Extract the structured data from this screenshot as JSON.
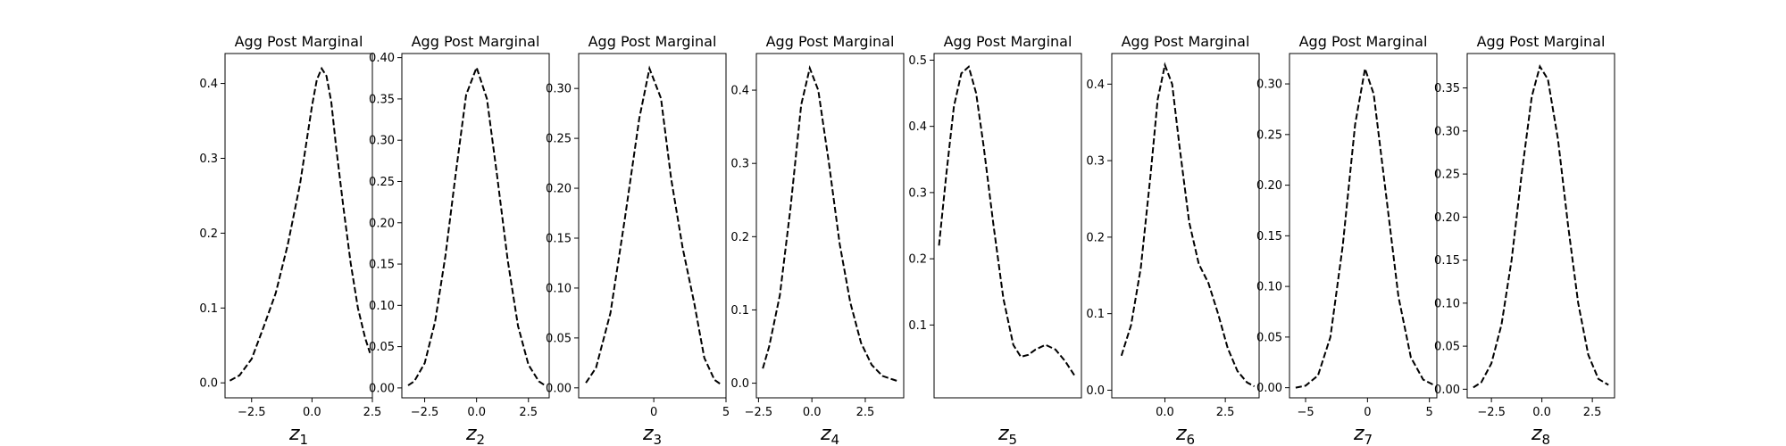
{
  "figure": {
    "background": "#ffffff",
    "line_color": "#000000"
  },
  "chart_data": [
    {
      "type": "line",
      "title": "Agg Post Marginal",
      "xlabel": "z",
      "xlabel_sub": "1",
      "xlim": [
        -3.6,
        2.5
      ],
      "ylim": [
        -0.02,
        0.44
      ],
      "xticks": [
        -2.5,
        0.0,
        2.5
      ],
      "xtick_labels": [
        "−2.5",
        "0.0",
        "2.5"
      ],
      "yticks": [
        0.0,
        0.1,
        0.2,
        0.3,
        0.4
      ],
      "ytick_labels": [
        "0.0",
        "0.1",
        "0.2",
        "0.3",
        "0.4"
      ],
      "series": [
        {
          "style": "dashed",
          "x": [
            -3.4,
            -3.0,
            -2.5,
            -2.0,
            -1.5,
            -1.0,
            -0.5,
            0.0,
            0.2,
            0.4,
            0.6,
            0.8,
            1.0,
            1.3,
            1.6,
            1.9,
            2.2,
            2.4
          ],
          "y": [
            0.003,
            0.01,
            0.032,
            0.075,
            0.12,
            0.185,
            0.265,
            0.37,
            0.405,
            0.42,
            0.41,
            0.375,
            0.315,
            0.235,
            0.16,
            0.1,
            0.06,
            0.04
          ]
        }
      ]
    },
    {
      "type": "line",
      "title": "Agg Post Marginal",
      "xlabel": "z",
      "xlabel_sub": "2",
      "xlim": [
        -3.6,
        3.5
      ],
      "ylim": [
        -0.012,
        0.405
      ],
      "xticks": [
        -2.5,
        0.0,
        2.5
      ],
      "xtick_labels": [
        "−2.5",
        "0.0",
        "2.5"
      ],
      "yticks": [
        0.0,
        0.05,
        0.1,
        0.15,
        0.2,
        0.25,
        0.3,
        0.35,
        0.4
      ],
      "ytick_labels": [
        "0.00",
        "0.05",
        "0.10",
        "0.15",
        "0.20",
        "0.25",
        "0.30",
        "0.35",
        "0.40"
      ],
      "series": [
        {
          "style": "dashed",
          "x": [
            -3.3,
            -3.0,
            -2.5,
            -2.0,
            -1.5,
            -1.0,
            -0.5,
            0.0,
            0.5,
            1.0,
            1.5,
            2.0,
            2.5,
            3.0,
            3.3
          ],
          "y": [
            0.003,
            0.008,
            0.03,
            0.08,
            0.16,
            0.26,
            0.355,
            0.388,
            0.35,
            0.255,
            0.155,
            0.075,
            0.028,
            0.008,
            0.003
          ]
        }
      ]
    },
    {
      "type": "line",
      "title": "Agg Post Marginal",
      "xlabel": "z",
      "xlabel_sub": "3",
      "xlim": [
        -5.2,
        5.0
      ],
      "ylim": [
        -0.01,
        0.335
      ],
      "xticks": [
        0,
        5
      ],
      "xtick_labels": [
        "0",
        "5"
      ],
      "yticks": [
        0.0,
        0.05,
        0.1,
        0.15,
        0.2,
        0.25,
        0.3
      ],
      "ytick_labels": [
        "0.00",
        "0.05",
        "0.10",
        "0.15",
        "0.20",
        "0.25",
        "0.30"
      ],
      "series": [
        {
          "style": "dashed",
          "x": [
            -4.7,
            -4.0,
            -3.0,
            -2.0,
            -1.0,
            -0.3,
            0.5,
            1.2,
            2.0,
            2.8,
            3.5,
            4.2,
            4.7
          ],
          "y": [
            0.005,
            0.02,
            0.075,
            0.17,
            0.27,
            0.32,
            0.29,
            0.21,
            0.14,
            0.085,
            0.03,
            0.008,
            0.003
          ]
        }
      ]
    },
    {
      "type": "line",
      "title": "Agg Post Marginal",
      "xlabel": "z",
      "xlabel_sub": "4",
      "xlim": [
        -2.6,
        4.3
      ],
      "ylim": [
        -0.02,
        0.45
      ],
      "xticks": [
        -2.5,
        0.0,
        2.5
      ],
      "xtick_labels": [
        "−2.5",
        "0.0",
        "2.5"
      ],
      "yticks": [
        0.0,
        0.1,
        0.2,
        0.3,
        0.4
      ],
      "ytick_labels": [
        "0.0",
        "0.1",
        "0.2",
        "0.3",
        "0.4"
      ],
      "series": [
        {
          "style": "dashed",
          "x": [
            -2.3,
            -2.0,
            -1.5,
            -1.0,
            -0.5,
            -0.1,
            0.3,
            0.8,
            1.3,
            1.8,
            2.3,
            2.8,
            3.3,
            3.8,
            4.0
          ],
          "y": [
            0.02,
            0.05,
            0.12,
            0.24,
            0.38,
            0.43,
            0.4,
            0.3,
            0.19,
            0.11,
            0.055,
            0.025,
            0.01,
            0.005,
            0.003
          ]
        }
      ]
    },
    {
      "type": "line",
      "title": "Agg Post Marginal",
      "xlabel": "z",
      "xlabel_sub": "5",
      "xlim": [
        -2.0,
        3.95
      ],
      "ylim": [
        -0.01,
        0.51
      ],
      "xticks": [],
      "xtick_labels": [],
      "yticks": [
        0.1,
        0.2,
        0.3,
        0.4,
        0.5
      ],
      "ytick_labels": [
        "0.1",
        "0.2",
        "0.3",
        "0.4",
        "0.5"
      ],
      "series": [
        {
          "style": "dashed",
          "x": [
            -1.8,
            -1.5,
            -1.2,
            -0.9,
            -0.6,
            -0.3,
            0.0,
            0.4,
            0.8,
            1.2,
            1.5,
            1.8,
            2.1,
            2.5,
            2.9,
            3.3,
            3.7
          ],
          "y": [
            0.22,
            0.33,
            0.43,
            0.48,
            0.49,
            0.45,
            0.37,
            0.25,
            0.14,
            0.07,
            0.052,
            0.055,
            0.063,
            0.07,
            0.063,
            0.045,
            0.022
          ]
        }
      ]
    },
    {
      "type": "line",
      "title": "Agg Post Marginal",
      "xlabel": "z",
      "xlabel_sub": "6",
      "xlim": [
        -2.2,
        3.9
      ],
      "ylim": [
        -0.01,
        0.44
      ],
      "xticks": [
        0.0,
        2.5
      ],
      "xtick_labels": [
        "0.0",
        "2.5"
      ],
      "yticks": [
        0.0,
        0.1,
        0.2,
        0.3,
        0.4
      ],
      "ytick_labels": [
        "0.0",
        "0.1",
        "0.2",
        "0.3",
        "0.4"
      ],
      "series": [
        {
          "style": "dashed",
          "x": [
            -1.8,
            -1.4,
            -1.0,
            -0.6,
            -0.3,
            0.0,
            0.3,
            0.6,
            1.0,
            1.4,
            1.8,
            2.2,
            2.6,
            3.0,
            3.4,
            3.7
          ],
          "y": [
            0.045,
            0.085,
            0.16,
            0.28,
            0.38,
            0.425,
            0.4,
            0.32,
            0.22,
            0.165,
            0.14,
            0.1,
            0.055,
            0.025,
            0.01,
            0.005
          ]
        }
      ]
    },
    {
      "type": "line",
      "title": "Agg Post Marginal",
      "xlabel": "z",
      "xlabel_sub": "7",
      "xlim": [
        -6.3,
        5.6
      ],
      "ylim": [
        -0.01,
        0.33
      ],
      "xticks": [
        -5,
        0,
        5
      ],
      "xtick_labels": [
        "−5",
        "0",
        "5"
      ],
      "yticks": [
        0.0,
        0.05,
        0.1,
        0.15,
        0.2,
        0.25,
        0.3
      ],
      "ytick_labels": [
        "0.00",
        "0.05",
        "0.10",
        "0.15",
        "0.20",
        "0.25",
        "0.30"
      ],
      "series": [
        {
          "style": "dashed",
          "x": [
            -5.8,
            -5.0,
            -4.0,
            -3.0,
            -2.0,
            -1.0,
            -0.2,
            0.5,
            1.5,
            2.5,
            3.5,
            4.5,
            5.3
          ],
          "y": [
            0.0,
            0.002,
            0.012,
            0.05,
            0.14,
            0.26,
            0.315,
            0.29,
            0.19,
            0.09,
            0.03,
            0.008,
            0.003
          ]
        }
      ]
    },
    {
      "type": "line",
      "title": "Agg Post Marginal",
      "xlabel": "z",
      "xlabel_sub": "8",
      "xlim": [
        -3.7,
        3.6
      ],
      "ylim": [
        -0.01,
        0.39
      ],
      "xticks": [
        -2.5,
        0.0,
        2.5
      ],
      "xtick_labels": [
        "−2.5",
        "0.0",
        "2.5"
      ],
      "yticks": [
        0.0,
        0.05,
        0.1,
        0.15,
        0.2,
        0.25,
        0.3,
        0.35
      ],
      "ytick_labels": [
        "0.00",
        "0.05",
        "0.10",
        "0.15",
        "0.20",
        "0.25",
        "0.30",
        "0.35"
      ],
      "series": [
        {
          "style": "dashed",
          "x": [
            -3.4,
            -3.0,
            -2.5,
            -2.0,
            -1.5,
            -1.0,
            -0.5,
            -0.1,
            0.3,
            0.8,
            1.3,
            1.8,
            2.3,
            2.8,
            3.3
          ],
          "y": [
            0.002,
            0.008,
            0.03,
            0.075,
            0.15,
            0.25,
            0.34,
            0.375,
            0.36,
            0.29,
            0.19,
            0.1,
            0.04,
            0.012,
            0.005
          ]
        }
      ]
    }
  ]
}
